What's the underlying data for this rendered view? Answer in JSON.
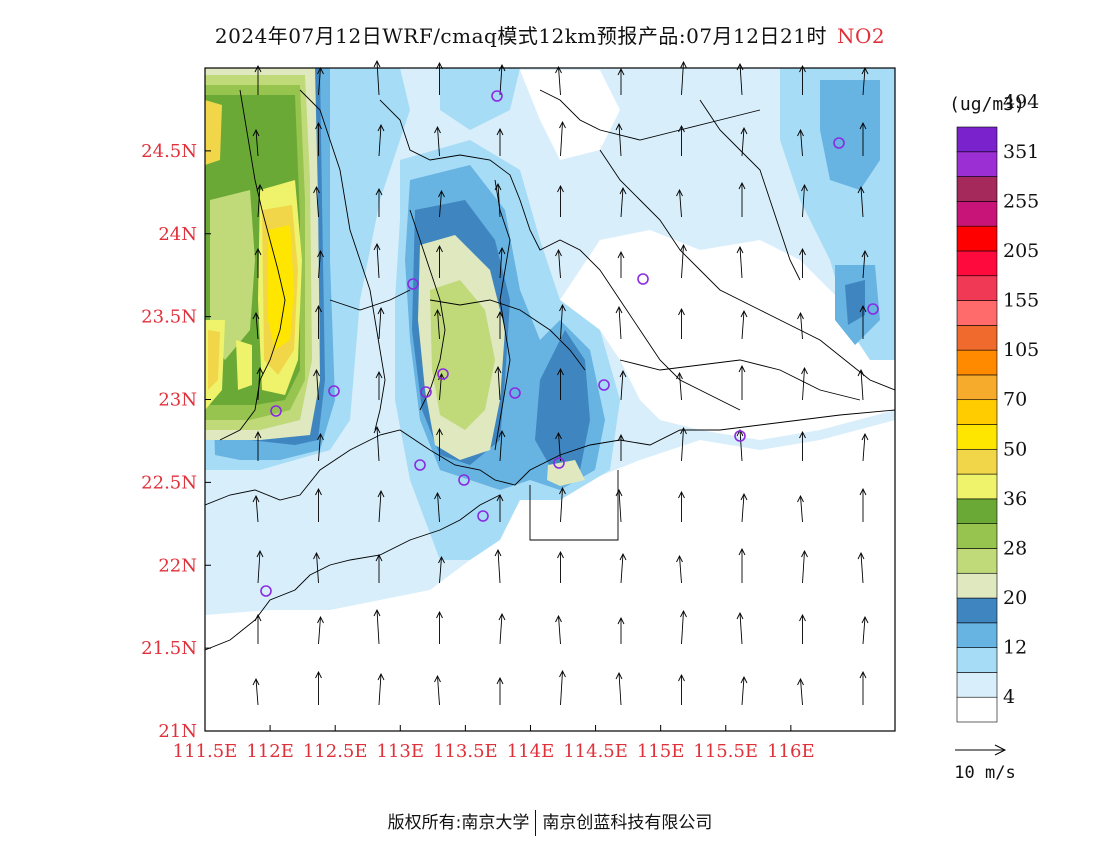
{
  "title": {
    "main": "2024年07月12日WRF/cmaq模式12km预报产品:07月12日21时",
    "pollutant": "NO2"
  },
  "axes": {
    "x_ticks": [
      "111.5E",
      "112E",
      "112.5E",
      "113E",
      "113.5E",
      "114E",
      "114.5E",
      "115E",
      "115.5E",
      "116E"
    ],
    "y_ticks": [
      "21N",
      "21.5N",
      "22N",
      "22.5N",
      "23N",
      "23.5N",
      "24N",
      "24.5N"
    ],
    "lon_range": [
      111.5,
      116.8
    ],
    "lat_range": [
      21.0,
      25.0
    ]
  },
  "legend": {
    "unit": "(ug/m3)",
    "labels": [
      "4",
      "12",
      "20",
      "28",
      "36",
      "50",
      "70",
      "105",
      "155",
      "205",
      "255",
      "351",
      "494"
    ],
    "colors": [
      "#ffffff",
      "#d8eefb",
      "#a7dcf6",
      "#67b3e2",
      "#3f86c1",
      "#dfe8bf",
      "#c0d979",
      "#96c44e",
      "#6ba936",
      "#eef36b",
      "#f2d64a",
      "#ffe600",
      "#ffcc00",
      "#f7ab2c",
      "#ff8a00",
      "#f06a2e",
      "#ff6b6b",
      "#f03a55",
      "#ff0a3c",
      "#ff0000",
      "#c81478",
      "#a5295a",
      "#9b2fd4",
      "#7a22cc"
    ]
  },
  "wind_legend": {
    "label": "10 m/s"
  },
  "stations_count_note": "",
  "footer": {
    "left": "版权所有:南京大学",
    "right": "南京创蓝科技有限公司"
  },
  "colors": {
    "tick_label": "#e0303a",
    "pollutant": "#e0303a",
    "station": "#8a2be2",
    "border": "#000000"
  }
}
